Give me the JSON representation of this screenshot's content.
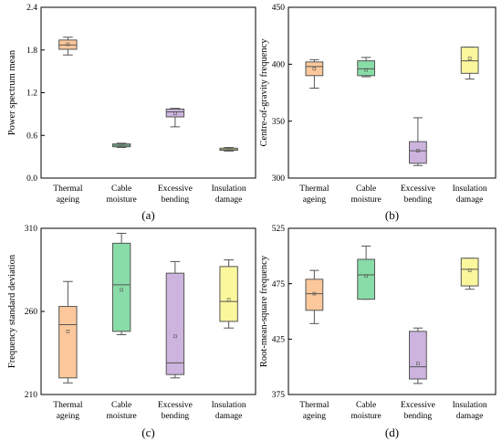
{
  "colors": {
    "thermal": "#fcc89b",
    "moisture": "#88dca7",
    "bending": "#cdb4de",
    "insulation": "#fbf79c"
  },
  "chart_data": [
    {
      "type": "boxplot",
      "panel_label": "(a)",
      "ylabel": "Power spectrum mean",
      "ylim": [
        0,
        2.4
      ],
      "yticks": [
        "0.0",
        "0.6",
        "1.2",
        "1.8",
        "2.4"
      ],
      "category_lines": [
        [
          "Thermal",
          "ageing"
        ],
        [
          "Cable",
          "moisture"
        ],
        [
          "Excessive",
          "bending"
        ],
        [
          "Insulation",
          "damage"
        ]
      ],
      "boxes": [
        {
          "min": 1.73,
          "q1": 1.81,
          "median": 1.87,
          "q3": 1.94,
          "max": 1.98,
          "mean": 1.88
        },
        {
          "min": 0.43,
          "q1": 0.44,
          "median": 0.46,
          "q3": 0.48,
          "max": 0.49,
          "mean": 0.46
        },
        {
          "min": 0.72,
          "q1": 0.86,
          "median": 0.93,
          "q3": 0.97,
          "max": 0.98,
          "mean": 0.91
        },
        {
          "min": 0.38,
          "q1": 0.39,
          "median": 0.4,
          "q3": 0.42,
          "max": 0.43,
          "mean": 0.4
        }
      ]
    },
    {
      "type": "boxplot",
      "panel_label": "(b)",
      "ylabel": "Centre-of-gravity frequency",
      "ylim": [
        300,
        450
      ],
      "yticks": [
        "300",
        "350",
        "400",
        "450"
      ],
      "category_lines": [
        [
          "Thermal",
          "ageing"
        ],
        [
          "Cable",
          "moisture"
        ],
        [
          "Excessive",
          "bending"
        ],
        [
          "Insulation",
          "damage"
        ]
      ],
      "boxes": [
        {
          "min": 379,
          "q1": 390,
          "median": 398,
          "q3": 402,
          "max": 404,
          "mean": 396
        },
        {
          "min": 389,
          "q1": 390,
          "median": 396,
          "q3": 403,
          "max": 406,
          "mean": 395
        },
        {
          "min": 311,
          "q1": 313,
          "median": 324,
          "q3": 332,
          "max": 353,
          "mean": 324
        },
        {
          "min": 387,
          "q1": 392,
          "median": 403,
          "q3": 415,
          "max": 415,
          "mean": 405
        }
      ]
    },
    {
      "type": "boxplot",
      "panel_label": "(c)",
      "ylabel": "Frequency standard deviation",
      "ylim": [
        210,
        310
      ],
      "yticks": [
        "210",
        "260",
        "310"
      ],
      "category_lines": [
        [
          "Thermal",
          "ageing"
        ],
        [
          "Cable",
          "moisture"
        ],
        [
          "Excessive",
          "bending"
        ],
        [
          "Insulation",
          "damage"
        ]
      ],
      "boxes": [
        {
          "min": 217,
          "q1": 220,
          "median": 252,
          "q3": 263,
          "max": 278,
          "mean": 248
        },
        {
          "min": 246,
          "q1": 248,
          "median": 276,
          "q3": 301,
          "max": 307,
          "mean": 273
        },
        {
          "min": 220,
          "q1": 222,
          "median": 229,
          "q3": 283,
          "max": 290,
          "mean": 245
        },
        {
          "min": 250,
          "q1": 254,
          "median": 266,
          "q3": 287,
          "max": 291,
          "mean": 267
        }
      ]
    },
    {
      "type": "boxplot",
      "panel_label": "(d)",
      "ylabel": "Root-mean-square frequency",
      "ylim": [
        375,
        525
      ],
      "yticks": [
        "375",
        "425",
        "475",
        "525"
      ],
      "category_lines": [
        [
          "Thermal",
          "ageing"
        ],
        [
          "Cable",
          "moisture"
        ],
        [
          "Excessive",
          "bending"
        ],
        [
          "Insulation",
          "damage"
        ]
      ],
      "boxes": [
        {
          "min": 439,
          "q1": 451,
          "median": 466,
          "q3": 479,
          "max": 487,
          "mean": 466
        },
        {
          "min": 461,
          "q1": 461,
          "median": 483,
          "q3": 497,
          "max": 509,
          "mean": 482
        },
        {
          "min": 385,
          "q1": 389,
          "median": 400,
          "q3": 432,
          "max": 435,
          "mean": 403
        },
        {
          "min": 470,
          "q1": 473,
          "median": 488,
          "q3": 498,
          "max": 498,
          "mean": 487
        }
      ]
    }
  ]
}
